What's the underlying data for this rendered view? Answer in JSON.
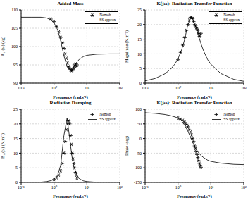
{
  "chart_data": [
    {
      "type": "line",
      "title": "Added Mass",
      "x_label": "Frequency (rad.s⁻¹)",
      "y_label": "A₁₁(ω) (kg)",
      "log": "x",
      "grid": true,
      "legend": "upper right",
      "xlim": [
        0.1,
        100
      ],
      "xticks": [
        {
          "value": 0.1,
          "label": "10⁻¹"
        },
        {
          "value": 1,
          "label": "10⁰"
        },
        {
          "value": 10,
          "label": "10¹"
        },
        {
          "value": 100,
          "label": "10²"
        }
      ],
      "ylim": [
        90,
        110
      ],
      "yticks": [
        90,
        95,
        100,
        105,
        110
      ],
      "series": [
        {
          "name": "Nemoh",
          "type": "scatter",
          "marker": "asterisk",
          "color": "#000000",
          "x": [
            0.8,
            1,
            1.2,
            1.4,
            1.6,
            1.8,
            2,
            2.2,
            2.4,
            2.6,
            2.8,
            3,
            3.2,
            3.4,
            3.6,
            3.8,
            4,
            4.2,
            4.5,
            4.8,
            5
          ],
          "values": [
            107.5,
            106.8,
            105.5,
            104,
            102.5,
            101,
            99.5,
            98,
            96.8,
            95.5,
            94.5,
            94,
            93.6,
            93.4,
            93.5,
            93.8,
            94.2,
            94.8,
            95.2,
            94.6,
            95
          ]
        },
        {
          "name": "SS approx",
          "type": "line",
          "line_style": "solid",
          "color": "#000000",
          "x": [
            0.1,
            0.2,
            0.4,
            0.6,
            0.8,
            1,
            1.3,
            1.6,
            2,
            2.5,
            3,
            3.5,
            4,
            5,
            6,
            8,
            10,
            20,
            50,
            100
          ],
          "values": [
            108,
            108,
            108,
            107.8,
            107.3,
            106.5,
            104.5,
            101.5,
            97.5,
            94.5,
            93.5,
            93.7,
            94.5,
            95.8,
            96.6,
            97.3,
            97.6,
            97.9,
            98,
            98
          ]
        }
      ]
    },
    {
      "type": "line",
      "title": "K(jω): Radiation Transfer Function",
      "x_label": "Frequency (rad.s⁻¹)",
      "y_label": "Magnitude (N.m⁻¹)",
      "log": "x",
      "grid": true,
      "legend": "upper right",
      "xlim": [
        0.1,
        100
      ],
      "xticks": [
        {
          "value": 0.1,
          "label": "10⁻¹"
        },
        {
          "value": 1,
          "label": "10⁰"
        },
        {
          "value": 10,
          "label": "10¹"
        },
        {
          "value": 100,
          "label": "10²"
        }
      ],
      "ylim": [
        0,
        25
      ],
      "yticks": [
        0,
        5,
        10,
        15,
        20,
        25
      ],
      "series": [
        {
          "name": "Nemoh",
          "type": "scatter",
          "marker": "asterisk",
          "color": "#000000",
          "x": [
            1,
            1.2,
            1.4,
            1.6,
            1.8,
            2,
            2.2,
            2.4,
            2.6,
            2.8,
            3,
            3.2,
            3.4,
            3.6,
            3.8,
            4,
            4.2,
            4.5,
            4.8,
            5
          ],
          "values": [
            8,
            10.5,
            13,
            15.5,
            18,
            20,
            21.5,
            22.5,
            22.5,
            22,
            21,
            20,
            19.5,
            19,
            18.5,
            18,
            17,
            16,
            16.5,
            17
          ]
        },
        {
          "name": "SS approx",
          "type": "line",
          "line_style": "solid",
          "color": "#000000",
          "x": [
            0.1,
            0.2,
            0.4,
            0.6,
            0.8,
            1,
            1.3,
            1.6,
            2,
            2.5,
            3,
            3.5,
            4,
            5,
            6,
            8,
            10,
            20,
            50,
            100
          ],
          "values": [
            0.8,
            1.6,
            3.2,
            4.8,
            6.5,
            8.3,
            11.5,
            15,
            20,
            22.5,
            21,
            19,
            17,
            13.5,
            11,
            8,
            6.5,
            3.3,
            1.3,
            0.65
          ]
        }
      ]
    },
    {
      "type": "line",
      "title": "Radiation Damping",
      "x_label": "Frequency (rad.s⁻¹)",
      "y_label": "B₁₁(ω) (N.m⁻¹)",
      "log": "x",
      "grid": true,
      "legend": "upper right",
      "xlim": [
        0.1,
        100
      ],
      "xticks": [
        {
          "value": 0.1,
          "label": "10⁻¹"
        },
        {
          "value": 1,
          "label": "10⁰"
        },
        {
          "value": 10,
          "label": "10¹"
        },
        {
          "value": 100,
          "label": "10²"
        }
      ],
      "ylim": [
        0,
        25
      ],
      "yticks": [
        0,
        5,
        10,
        15,
        20,
        25
      ],
      "series": [
        {
          "name": "Nemoh",
          "type": "scatter",
          "marker": "asterisk",
          "color": "#000000",
          "x": [
            1,
            1.2,
            1.4,
            1.6,
            1.8,
            2,
            2.2,
            2.4,
            2.6,
            2.8,
            3,
            3.2,
            3.4,
            3.6,
            3.8,
            4,
            4.2,
            4.5,
            4.8,
            5
          ],
          "values": [
            1,
            1.6,
            2.5,
            4,
            6.5,
            10,
            14,
            18,
            20,
            21,
            20,
            16,
            13,
            10,
            8,
            6.5,
            5,
            3.5,
            2.5,
            1.5
          ]
        },
        {
          "name": "SS approx",
          "type": "line",
          "line_style": "solid",
          "color": "#000000",
          "x": [
            0.1,
            0.2,
            0.4,
            0.6,
            0.8,
            1,
            1.3,
            1.6,
            2,
            2.5,
            3,
            3.5,
            4,
            5,
            6,
            8,
            10,
            20,
            50,
            100
          ],
          "values": [
            0,
            0,
            0.1,
            0.3,
            0.6,
            1,
            2.5,
            6,
            16,
            22,
            15,
            9,
            5.5,
            2.5,
            1.2,
            0.5,
            0.3,
            0.05,
            0,
            0
          ]
        }
      ]
    },
    {
      "type": "line",
      "title": "K(jω): Radiation Transfer Function",
      "x_label": "Frequency (rad.s⁻¹)",
      "y_label": "Phase (deg)",
      "log": "x",
      "grid": true,
      "legend": "upper right",
      "xlim": [
        0.1,
        100
      ],
      "xticks": [
        {
          "value": 0.1,
          "label": "10⁻¹"
        },
        {
          "value": 1,
          "label": "10⁰"
        },
        {
          "value": 10,
          "label": "10¹"
        },
        {
          "value": 100,
          "label": "10²"
        }
      ],
      "ylim": [
        -150,
        100
      ],
      "yticks": [
        -150,
        -100,
        -50,
        0,
        50,
        100
      ],
      "series": [
        {
          "name": "Nemoh",
          "type": "scatter",
          "marker": "asterisk",
          "color": "#000000",
          "x": [
            1,
            1.2,
            1.4,
            1.6,
            1.8,
            2,
            2.2,
            2.4,
            2.6,
            2.8,
            3,
            3.2,
            3.4,
            3.6,
            3.8,
            4,
            4.2,
            4.5,
            4.8,
            5
          ],
          "values": [
            70,
            66,
            62,
            55,
            48,
            40,
            30,
            22,
            12,
            0,
            -10,
            -25,
            -35,
            -45,
            -55,
            -65,
            -75,
            -85,
            -92,
            -98
          ]
        },
        {
          "name": "SS approx",
          "type": "line",
          "line_style": "solid",
          "color": "#000000",
          "x": [
            0.1,
            0.2,
            0.4,
            0.6,
            0.8,
            1,
            1.3,
            1.6,
            2,
            2.5,
            3,
            3.5,
            4,
            5,
            6,
            8,
            10,
            20,
            50,
            100
          ],
          "values": [
            88,
            86,
            82,
            78,
            74,
            70,
            60,
            45,
            25,
            0,
            -20,
            -35,
            -45,
            -58,
            -65,
            -74,
            -78,
            -84,
            -88,
            -89
          ]
        }
      ]
    }
  ]
}
